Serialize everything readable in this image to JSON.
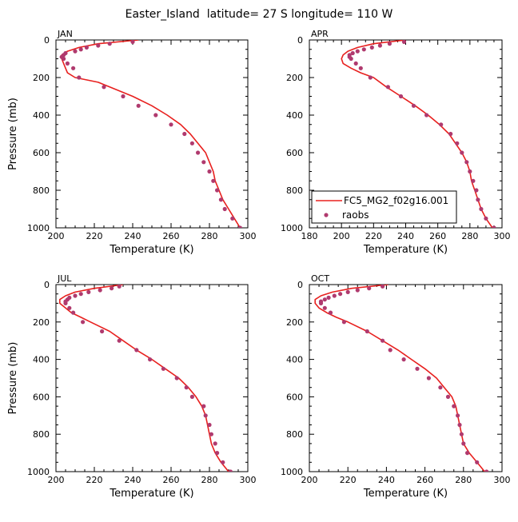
{
  "figure": {
    "title": "Easter_Island  latitude= 27 S longitude= 110 W",
    "model_color": "#e8201e",
    "obs_color": "#b03a6e"
  },
  "chart_data": [
    {
      "type": "line",
      "panel": "JAN",
      "title": "JAN",
      "xlabel": "Temperature (K)",
      "ylabel": "Pressure (mb)",
      "xlim": [
        200,
        300
      ],
      "ylim": [
        1000,
        0
      ],
      "x_ticks": [
        200,
        220,
        240,
        260,
        280,
        300
      ],
      "y_ticks": [
        0,
        200,
        400,
        600,
        800,
        1000
      ],
      "legend": null,
      "series": [
        {
          "name": "FC5_MG2_f02g16.001",
          "kind": "line",
          "points": [
            [
              243,
              0
            ],
            [
              222,
              20
            ],
            [
              212,
              40
            ],
            [
              206,
              60
            ],
            [
              203,
              80
            ],
            [
              203,
              100
            ],
            [
              204,
              125
            ],
            [
              205,
              150
            ],
            [
              206,
              175
            ],
            [
              210,
              200
            ],
            [
              222,
              225
            ],
            [
              228,
              250
            ],
            [
              240,
              300
            ],
            [
              250,
              350
            ],
            [
              258,
              400
            ],
            [
              265,
              450
            ],
            [
              270,
              500
            ],
            [
              274,
              550
            ],
            [
              278,
              600
            ],
            [
              280,
              650
            ],
            [
              282,
              700
            ],
            [
              283,
              750
            ],
            [
              285,
              800
            ],
            [
              287,
              850
            ],
            [
              290,
              900
            ],
            [
              293,
              950
            ],
            [
              296,
              1000
            ]
          ]
        },
        {
          "name": "raobs",
          "kind": "scatter",
          "points": [
            [
              240,
              10
            ],
            [
              228,
              20
            ],
            [
              222,
              30
            ],
            [
              216,
              40
            ],
            [
              213,
              50
            ],
            [
              210,
              60
            ],
            [
              205,
              70
            ],
            [
              204,
              80
            ],
            [
              203,
              90
            ],
            [
              204,
              100
            ],
            [
              206,
              125
            ],
            [
              209,
              150
            ],
            [
              212,
              200
            ],
            [
              225,
              250
            ],
            [
              235,
              300
            ],
            [
              243,
              350
            ],
            [
              252,
              400
            ],
            [
              260,
              450
            ],
            [
              267,
              500
            ],
            [
              271,
              550
            ],
            [
              274,
              600
            ],
            [
              277,
              650
            ],
            [
              280,
              700
            ],
            [
              282,
              750
            ],
            [
              284,
              800
            ],
            [
              286,
              850
            ],
            [
              288,
              900
            ],
            [
              292,
              950
            ],
            [
              296,
              1000
            ]
          ]
        }
      ]
    },
    {
      "type": "line",
      "panel": "APR",
      "title": "APR",
      "xlabel": "Temperature (K)",
      "ylabel": "",
      "xlim": [
        180,
        300
      ],
      "ylim": [
        1000,
        0
      ],
      "x_ticks": [
        180,
        200,
        220,
        240,
        260,
        280,
        300
      ],
      "y_ticks": [
        0,
        200,
        400,
        600,
        800,
        1000
      ],
      "legend": "lower-left",
      "series": [
        {
          "name": "FC5_MG2_f02g16.001",
          "kind": "line",
          "points": [
            [
              240,
              0
            ],
            [
              220,
              20
            ],
            [
              210,
              40
            ],
            [
              204,
              60
            ],
            [
              201,
              80
            ],
            [
              200,
              100
            ],
            [
              201,
              125
            ],
            [
              206,
              150
            ],
            [
              212,
              175
            ],
            [
              220,
              200
            ],
            [
              228,
              250
            ],
            [
              237,
              300
            ],
            [
              246,
              350
            ],
            [
              254,
              400
            ],
            [
              261,
              450
            ],
            [
              267,
              500
            ],
            [
              271,
              550
            ],
            [
              275,
              600
            ],
            [
              278,
              650
            ],
            [
              280,
              700
            ],
            [
              281,
              750
            ],
            [
              283,
              800
            ],
            [
              285,
              850
            ],
            [
              287,
              900
            ],
            [
              290,
              950
            ],
            [
              294,
              1000
            ]
          ]
        },
        {
          "name": "raobs",
          "kind": "scatter",
          "points": [
            [
              239,
              10
            ],
            [
              230,
              20
            ],
            [
              224,
              30
            ],
            [
              219,
              40
            ],
            [
              214,
              50
            ],
            [
              210,
              60
            ],
            [
              207,
              70
            ],
            [
              205,
              80
            ],
            [
              205,
              90
            ],
            [
              206,
              100
            ],
            [
              209,
              125
            ],
            [
              212,
              150
            ],
            [
              218,
              200
            ],
            [
              229,
              250
            ],
            [
              237,
              300
            ],
            [
              245,
              350
            ],
            [
              253,
              400
            ],
            [
              262,
              450
            ],
            [
              268,
              500
            ],
            [
              272,
              550
            ],
            [
              275,
              600
            ],
            [
              278,
              650
            ],
            [
              280,
              700
            ],
            [
              282,
              750
            ],
            [
              284,
              800
            ],
            [
              285,
              850
            ],
            [
              287,
              900
            ],
            [
              290,
              950
            ],
            [
              295,
              1000
            ]
          ]
        }
      ]
    },
    {
      "type": "line",
      "panel": "JUL",
      "title": "JUL",
      "xlabel": "Temperature (K)",
      "ylabel": "Pressure (mb)",
      "xlim": [
        200,
        300
      ],
      "ylim": [
        1000,
        0
      ],
      "x_ticks": [
        200,
        220,
        240,
        260,
        280,
        300
      ],
      "y_ticks": [
        0,
        200,
        400,
        600,
        800,
        1000
      ],
      "legend": null,
      "series": [
        {
          "name": "FC5_MG2_f02g16.001",
          "kind": "line",
          "points": [
            [
              235,
              0
            ],
            [
              220,
              20
            ],
            [
              210,
              40
            ],
            [
              205,
              60
            ],
            [
              202,
              80
            ],
            [
              202,
              100
            ],
            [
              205,
              125
            ],
            [
              208,
              150
            ],
            [
              213,
              175
            ],
            [
              218,
              200
            ],
            [
              228,
              250
            ],
            [
              235,
              300
            ],
            [
              242,
              350
            ],
            [
              250,
              400
            ],
            [
              257,
              450
            ],
            [
              264,
              500
            ],
            [
              269,
              550
            ],
            [
              273,
              600
            ],
            [
              276,
              650
            ],
            [
              278,
              700
            ],
            [
              279,
              750
            ],
            [
              280,
              800
            ],
            [
              281,
              850
            ],
            [
              283,
              900
            ],
            [
              286,
              950
            ],
            [
              290,
              1000
            ]
          ]
        },
        {
          "name": "raobs",
          "kind": "scatter",
          "points": [
            [
              233,
              10
            ],
            [
              229,
              20
            ],
            [
              223,
              30
            ],
            [
              217,
              40
            ],
            [
              213,
              50
            ],
            [
              210,
              60
            ],
            [
              207,
              70
            ],
            [
              206,
              80
            ],
            [
              205,
              90
            ],
            [
              205,
              100
            ],
            [
              207,
              125
            ],
            [
              209,
              150
            ],
            [
              214,
              200
            ],
            [
              224,
              250
            ],
            [
              233,
              300
            ],
            [
              242,
              350
            ],
            [
              249,
              400
            ],
            [
              256,
              450
            ],
            [
              263,
              500
            ],
            [
              268,
              550
            ],
            [
              271,
              600
            ],
            [
              277,
              650
            ],
            [
              278,
              700
            ],
            [
              280,
              750
            ],
            [
              281,
              800
            ],
            [
              283,
              850
            ],
            [
              284,
              900
            ],
            [
              287,
              950
            ],
            [
              291,
              1000
            ]
          ]
        }
      ]
    },
    {
      "type": "line",
      "panel": "OCT",
      "title": "OCT",
      "xlabel": "Temperature (K)",
      "ylabel": "",
      "xlim": [
        200,
        300
      ],
      "ylim": [
        1000,
        0
      ],
      "x_ticks": [
        200,
        220,
        240,
        260,
        280,
        300
      ],
      "y_ticks": [
        0,
        200,
        400,
        600,
        800,
        1000
      ],
      "legend": null,
      "series": [
        {
          "name": "FC5_MG2_f02g16.001",
          "kind": "line",
          "points": [
            [
              241,
              0
            ],
            [
              222,
              20
            ],
            [
              212,
              40
            ],
            [
              206,
              60
            ],
            [
              203,
              80
            ],
            [
              203,
              100
            ],
            [
              205,
              125
            ],
            [
              209,
              150
            ],
            [
              214,
              175
            ],
            [
              220,
              200
            ],
            [
              230,
              250
            ],
            [
              238,
              300
            ],
            [
              246,
              350
            ],
            [
              253,
              400
            ],
            [
              260,
              450
            ],
            [
              266,
              500
            ],
            [
              270,
              550
            ],
            [
              274,
              600
            ],
            [
              276,
              650
            ],
            [
              277,
              700
            ],
            [
              278,
              750
            ],
            [
              279,
              800
            ],
            [
              280,
              850
            ],
            [
              283,
              900
            ],
            [
              287,
              950
            ],
            [
              291,
              1000
            ]
          ]
        },
        {
          "name": "raobs",
          "kind": "scatter",
          "points": [
            [
              238,
              10
            ],
            [
              231,
              20
            ],
            [
              225,
              30
            ],
            [
              220,
              40
            ],
            [
              216,
              50
            ],
            [
              213,
              60
            ],
            [
              210,
              70
            ],
            [
              208,
              80
            ],
            [
              206,
              90
            ],
            [
              206,
              100
            ],
            [
              208,
              125
            ],
            [
              211,
              150
            ],
            [
              218,
              200
            ],
            [
              230,
              250
            ],
            [
              238,
              300
            ],
            [
              242,
              350
            ],
            [
              249,
              400
            ],
            [
              256,
              450
            ],
            [
              262,
              500
            ],
            [
              268,
              550
            ],
            [
              272,
              600
            ],
            [
              275,
              650
            ],
            [
              277,
              700
            ],
            [
              278,
              750
            ],
            [
              279,
              800
            ],
            [
              280,
              850
            ],
            [
              282,
              900
            ],
            [
              287,
              950
            ],
            [
              292,
              1000
            ]
          ]
        }
      ]
    }
  ]
}
